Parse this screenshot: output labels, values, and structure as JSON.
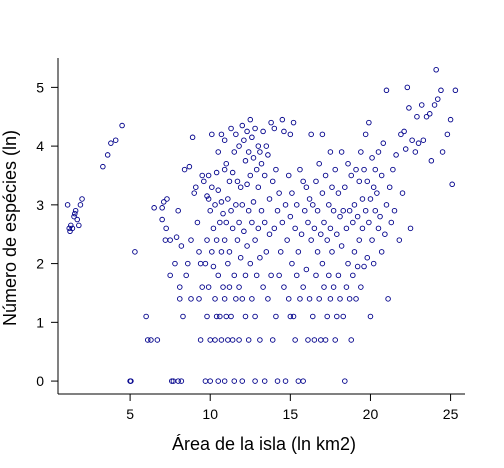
{
  "chart_data": {
    "type": "scatter",
    "title": "",
    "xlabel": "Área de la isla (ln km2)",
    "ylabel": "Número de espécies (ln)",
    "xlim": [
      0.5,
      25.9
    ],
    "ylim": [
      -0.22,
      5.5
    ],
    "xticks": [
      5,
      10,
      15,
      20,
      25
    ],
    "yticks": [
      0,
      1,
      2,
      3,
      4,
      5
    ],
    "grid": false,
    "legend": "none",
    "marker_color": "#00008b",
    "marker": "open-circle",
    "points": [
      [
        1.1,
        3.0
      ],
      [
        1.2,
        2.6
      ],
      [
        1.25,
        2.55
      ],
      [
        1.3,
        2.65
      ],
      [
        1.5,
        2.8
      ],
      [
        1.55,
        2.85
      ],
      [
        1.7,
        2.75
      ],
      [
        1.8,
        2.65
      ],
      [
        1.9,
        3.0
      ],
      [
        2.0,
        3.1
      ],
      [
        1.6,
        2.9
      ],
      [
        1.4,
        2.6
      ],
      [
        3.3,
        3.65
      ],
      [
        3.6,
        3.85
      ],
      [
        3.8,
        4.05
      ],
      [
        4.1,
        4.1
      ],
      [
        4.5,
        4.35
      ],
      [
        5.0,
        0.0
      ],
      [
        5.05,
        0.0
      ],
      [
        5.3,
        2.2
      ],
      [
        6.0,
        1.1
      ],
      [
        6.1,
        0.7
      ],
      [
        6.3,
        0.7
      ],
      [
        6.5,
        2.95
      ],
      [
        6.7,
        0.7
      ],
      [
        7.0,
        2.75
      ],
      [
        7.0,
        2.95
      ],
      [
        7.1,
        3.05
      ],
      [
        7.2,
        2.4
      ],
      [
        7.25,
        2.6
      ],
      [
        7.3,
        3.1
      ],
      [
        7.5,
        2.4
      ],
      [
        7.5,
        1.8
      ],
      [
        7.6,
        0.0
      ],
      [
        7.7,
        0.0
      ],
      [
        7.8,
        2.0
      ],
      [
        7.9,
        2.45
      ],
      [
        8.0,
        0.0
      ],
      [
        8.1,
        1.6
      ],
      [
        8.1,
        1.4
      ],
      [
        8.2,
        2.3
      ],
      [
        8.3,
        1.1
      ],
      [
        8.2,
        0.0
      ],
      [
        8.0,
        2.9
      ],
      [
        8.4,
        3.6
      ],
      [
        8.5,
        1.8
      ],
      [
        8.6,
        2.0
      ],
      [
        8.7,
        3.65
      ],
      [
        8.8,
        2.4
      ],
      [
        8.9,
        4.15
      ],
      [
        8.8,
        1.4
      ],
      [
        9.0,
        3.2
      ],
      [
        9.1,
        3.3
      ],
      [
        9.2,
        2.7
      ],
      [
        9.3,
        2.2
      ],
      [
        9.3,
        1.4
      ],
      [
        9.4,
        2.0
      ],
      [
        9.4,
        0.7
      ],
      [
        9.5,
        3.5
      ],
      [
        9.5,
        1.6
      ],
      [
        9.6,
        3.4
      ],
      [
        9.7,
        2.0
      ],
      [
        9.7,
        0.0
      ],
      [
        9.8,
        3.15
      ],
      [
        9.8,
        2.4
      ],
      [
        9.8,
        1.1
      ],
      [
        9.9,
        3.1
      ],
      [
        9.9,
        3.5
      ],
      [
        9.9,
        1.6
      ],
      [
        10.0,
        2.9
      ],
      [
        10.0,
        0.7
      ],
      [
        10.0,
        0.0
      ],
      [
        10.1,
        4.2
      ],
      [
        10.1,
        3.3
      ],
      [
        10.1,
        2.2
      ],
      [
        10.2,
        2.6
      ],
      [
        10.2,
        1.95
      ],
      [
        10.3,
        3.0
      ],
      [
        10.3,
        1.4
      ],
      [
        10.3,
        0.7
      ],
      [
        10.4,
        3.55
      ],
      [
        10.4,
        2.4
      ],
      [
        10.4,
        1.1
      ],
      [
        10.5,
        3.9
      ],
      [
        10.5,
        3.25
      ],
      [
        10.5,
        1.8
      ],
      [
        10.5,
        0.0
      ],
      [
        10.6,
        2.7
      ],
      [
        10.6,
        1.1
      ],
      [
        10.7,
        4.2
      ],
      [
        10.7,
        3.05
      ],
      [
        10.7,
        2.2
      ],
      [
        10.7,
        0.7
      ],
      [
        10.8,
        2.85
      ],
      [
        10.8,
        1.6
      ],
      [
        10.9,
        4.1
      ],
      [
        10.9,
        3.6
      ],
      [
        10.9,
        2.4
      ],
      [
        10.9,
        1.4
      ],
      [
        10.9,
        0.0
      ],
      [
        11.0,
        3.7
      ],
      [
        11.0,
        2.7
      ],
      [
        11.0,
        1.1
      ],
      [
        11.1,
        3.1
      ],
      [
        11.1,
        2.0
      ],
      [
        11.1,
        0.7
      ],
      [
        11.2,
        3.4
      ],
      [
        11.2,
        2.2
      ],
      [
        11.2,
        1.6
      ],
      [
        11.3,
        4.3
      ],
      [
        11.3,
        2.9
      ],
      [
        11.3,
        1.1
      ],
      [
        11.4,
        3.55
      ],
      [
        11.4,
        2.6
      ],
      [
        11.4,
        0.7
      ],
      [
        11.5,
        3.9
      ],
      [
        11.5,
        1.8
      ],
      [
        11.5,
        0.0
      ],
      [
        11.6,
        4.2
      ],
      [
        11.6,
        3.0
      ],
      [
        11.6,
        1.4
      ],
      [
        11.7,
        3.4
      ],
      [
        11.7,
        2.4
      ],
      [
        11.8,
        4.0
      ],
      [
        11.8,
        2.7
      ],
      [
        11.8,
        1.6
      ],
      [
        11.8,
        0.7
      ],
      [
        11.9,
        3.3
      ],
      [
        11.9,
        2.1
      ],
      [
        12.0,
        4.35
      ],
      [
        12.0,
        3.0
      ],
      [
        12.0,
        1.4
      ],
      [
        12.0,
        0.0
      ],
      [
        12.1,
        4.1
      ],
      [
        12.1,
        2.55
      ],
      [
        12.2,
        3.75
      ],
      [
        12.2,
        1.8
      ],
      [
        12.2,
        1.1
      ],
      [
        12.3,
        4.25
      ],
      [
        12.3,
        3.35
      ],
      [
        12.3,
        2.3
      ],
      [
        12.4,
        3.9
      ],
      [
        12.4,
        2.9
      ],
      [
        12.4,
        0.7
      ],
      [
        12.5,
        4.45
      ],
      [
        12.5,
        3.5
      ],
      [
        12.5,
        2.0
      ],
      [
        12.6,
        4.15
      ],
      [
        12.6,
        2.7
      ],
      [
        12.6,
        1.4
      ],
      [
        12.7,
        3.8
      ],
      [
        12.7,
        3.05
      ],
      [
        12.8,
        4.3
      ],
      [
        12.8,
        2.4
      ],
      [
        12.8,
        1.1
      ],
      [
        12.8,
        0.0
      ],
      [
        12.9,
        3.6
      ],
      [
        12.9,
        1.8
      ],
      [
        13.0,
        4.0
      ],
      [
        13.0,
        3.3
      ],
      [
        13.0,
        2.6
      ],
      [
        13.1,
        3.9
      ],
      [
        13.1,
        2.1
      ],
      [
        13.1,
        0.7
      ],
      [
        13.2,
        3.7
      ],
      [
        13.2,
        2.9
      ],
      [
        13.3,
        4.25
      ],
      [
        13.3,
        1.6
      ],
      [
        13.4,
        3.5
      ],
      [
        13.4,
        2.7
      ],
      [
        13.4,
        0.0
      ],
      [
        13.5,
        4.0
      ],
      [
        13.5,
        2.2
      ],
      [
        13.6,
        3.85
      ],
      [
        13.6,
        1.4
      ],
      [
        13.7,
        3.1
      ],
      [
        13.7,
        2.5
      ],
      [
        13.8,
        4.4
      ],
      [
        13.8,
        1.8
      ],
      [
        13.9,
        3.4
      ],
      [
        13.9,
        0.7
      ],
      [
        14.0,
        4.3
      ],
      [
        14.0,
        2.6
      ],
      [
        14.1,
        3.6
      ],
      [
        14.1,
        1.1
      ],
      [
        14.2,
        2.9
      ],
      [
        14.2,
        0.0
      ],
      [
        14.3,
        3.2
      ],
      [
        14.3,
        1.8
      ],
      [
        14.4,
        2.2
      ],
      [
        14.5,
        4.45
      ],
      [
        14.5,
        2.7
      ],
      [
        14.6,
        4.25
      ],
      [
        14.6,
        1.6
      ],
      [
        14.7,
        3.0
      ],
      [
        14.7,
        0.0
      ],
      [
        14.8,
        2.4
      ],
      [
        14.9,
        3.5
      ],
      [
        14.9,
        1.4
      ],
      [
        15.0,
        2.8
      ],
      [
        15.0,
        1.1
      ],
      [
        15.0,
        4.2
      ],
      [
        15.1,
        3.2
      ],
      [
        15.1,
        2.0
      ],
      [
        15.2,
        4.4
      ],
      [
        15.2,
        1.1
      ],
      [
        15.3,
        2.6
      ],
      [
        15.3,
        0.7
      ],
      [
        15.4,
        3.0
      ],
      [
        15.4,
        1.8
      ],
      [
        15.5,
        2.2
      ],
      [
        15.5,
        0.0
      ],
      [
        15.6,
        3.6
      ],
      [
        15.6,
        1.4
      ],
      [
        15.7,
        2.5
      ],
      [
        15.8,
        3.4
      ],
      [
        15.8,
        1.6
      ],
      [
        15.8,
        0.0
      ],
      [
        15.9,
        2.9
      ],
      [
        16.0,
        3.3
      ],
      [
        16.0,
        1.9
      ],
      [
        16.1,
        2.7
      ],
      [
        16.1,
        0.7
      ],
      [
        16.2,
        3.1
      ],
      [
        16.2,
        1.4
      ],
      [
        16.3,
        4.2
      ],
      [
        16.3,
        2.4
      ],
      [
        16.4,
        3.0
      ],
      [
        16.4,
        1.1
      ],
      [
        16.5,
        2.6
      ],
      [
        16.5,
        0.7
      ],
      [
        16.6,
        3.4
      ],
      [
        16.6,
        1.8
      ],
      [
        16.7,
        2.9
      ],
      [
        16.7,
        2.2
      ],
      [
        16.8,
        3.7
      ],
      [
        16.8,
        1.4
      ],
      [
        16.9,
        2.5
      ],
      [
        16.9,
        0.7
      ],
      [
        17.0,
        4.2
      ],
      [
        17.0,
        3.2
      ],
      [
        17.0,
        2.0
      ],
      [
        17.1,
        2.7
      ],
      [
        17.1,
        1.6
      ],
      [
        17.2,
        3.5
      ],
      [
        17.2,
        0.7
      ],
      [
        17.3,
        2.4
      ],
      [
        17.3,
        1.1
      ],
      [
        17.4,
        3.0
      ],
      [
        17.4,
        1.8
      ],
      [
        17.5,
        3.9
      ],
      [
        17.5,
        2.6
      ],
      [
        17.5,
        1.4
      ],
      [
        17.6,
        3.3
      ],
      [
        17.6,
        2.2
      ],
      [
        17.7,
        2.9
      ],
      [
        17.7,
        1.6
      ],
      [
        17.8,
        3.6
      ],
      [
        17.8,
        0.7
      ],
      [
        17.9,
        2.5
      ],
      [
        17.9,
        1.1
      ],
      [
        18.0,
        3.2
      ],
      [
        18.0,
        1.8
      ],
      [
        18.1,
        2.8
      ],
      [
        18.1,
        1.4
      ],
      [
        18.2,
        3.9
      ],
      [
        18.2,
        2.3
      ],
      [
        18.3,
        2.9
      ],
      [
        18.3,
        1.1
      ],
      [
        18.4,
        3.3
      ],
      [
        18.4,
        0.0
      ],
      [
        18.5,
        2.6
      ],
      [
        18.5,
        1.6
      ],
      [
        18.6,
        3.7
      ],
      [
        18.6,
        2.0
      ],
      [
        18.7,
        2.9
      ],
      [
        18.7,
        1.4
      ],
      [
        18.8,
        3.5
      ],
      [
        18.8,
        0.7
      ],
      [
        18.9,
        2.7
      ],
      [
        18.9,
        1.8
      ],
      [
        19.0,
        3.0
      ],
      [
        19.0,
        2.2
      ],
      [
        19.1,
        3.6
      ],
      [
        19.1,
        1.4
      ],
      [
        19.2,
        2.8
      ],
      [
        19.2,
        1.95
      ],
      [
        19.3,
        3.4
      ],
      [
        19.3,
        2.4
      ],
      [
        19.4,
        3.9
      ],
      [
        19.4,
        1.6
      ],
      [
        19.5,
        3.1
      ],
      [
        19.5,
        2.6
      ],
      [
        19.6,
        3.6
      ],
      [
        19.6,
        1.95
      ],
      [
        19.7,
        4.2
      ],
      [
        19.7,
        2.9
      ],
      [
        19.8,
        3.4
      ],
      [
        19.8,
        2.1
      ],
      [
        19.9,
        4.4
      ],
      [
        19.9,
        2.7
      ],
      [
        20.0,
        3.1
      ],
      [
        20.0,
        1.1
      ],
      [
        20.1,
        3.8
      ],
      [
        20.1,
        2.4
      ],
      [
        20.2,
        3.3
      ],
      [
        20.2,
        2.0
      ],
      [
        20.3,
        3.6
      ],
      [
        20.3,
        2.9
      ],
      [
        20.4,
        3.2
      ],
      [
        20.5,
        3.9
      ],
      [
        20.5,
        2.6
      ],
      [
        20.6,
        2.8
      ],
      [
        20.7,
        3.5
      ],
      [
        20.7,
        2.2
      ],
      [
        20.8,
        4.05
      ],
      [
        20.9,
        2.5
      ],
      [
        21.0,
        4.95
      ],
      [
        21.0,
        3.0
      ],
      [
        21.1,
        1.4
      ],
      [
        21.2,
        3.3
      ],
      [
        21.3,
        2.7
      ],
      [
        21.4,
        3.6
      ],
      [
        21.5,
        2.9
      ],
      [
        21.6,
        3.85
      ],
      [
        21.8,
        2.4
      ],
      [
        21.9,
        4.2
      ],
      [
        22.0,
        3.2
      ],
      [
        22.1,
        4.25
      ],
      [
        22.2,
        3.95
      ],
      [
        22.3,
        5.0
      ],
      [
        22.4,
        4.65
      ],
      [
        22.5,
        2.6
      ],
      [
        22.6,
        4.1
      ],
      [
        22.8,
        3.9
      ],
      [
        22.9,
        4.5
      ],
      [
        23.0,
        4.05
      ],
      [
        23.2,
        4.7
      ],
      [
        23.3,
        4.1
      ],
      [
        23.5,
        4.5
      ],
      [
        23.7,
        4.55
      ],
      [
        23.8,
        3.75
      ],
      [
        24.0,
        4.7
      ],
      [
        24.1,
        5.3
      ],
      [
        24.2,
        4.8
      ],
      [
        24.4,
        4.95
      ],
      [
        24.5,
        3.9
      ],
      [
        24.8,
        4.2
      ],
      [
        25.0,
        4.45
      ],
      [
        25.1,
        3.35
      ],
      [
        25.3,
        4.95
      ]
    ]
  }
}
